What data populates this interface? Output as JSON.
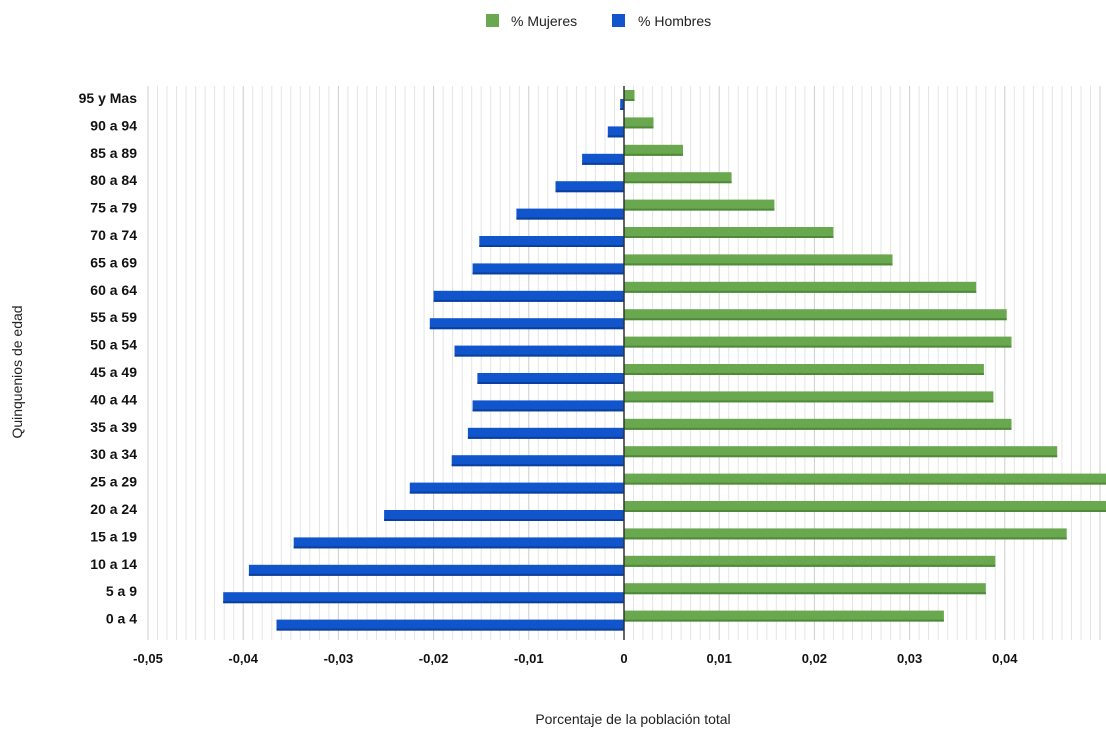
{
  "chart_data": {
    "type": "bar",
    "orientation": "horizontal",
    "title": "",
    "xlabel": "Porcentaje de la población total",
    "ylabel": "Quinquenios de edad",
    "categories": [
      "95 y Mas",
      "90 a 94",
      "85 a 89",
      "80 a 84",
      "75 a 79",
      "70 a 74",
      "65 a 69",
      "60 a 64",
      "55 a 59",
      "50 a 54",
      "45 a 49",
      "40 a 44",
      "35 a 39",
      "30 a 34",
      "25 a 29",
      "20 a 24",
      "15 a 19",
      "10 a 14",
      "5 a 9",
      "0 a 4"
    ],
    "series": [
      {
        "name": "% Mujeres",
        "color": "#6aa84f",
        "values": [
          0.0011,
          0.0031,
          0.0062,
          0.0113,
          0.0158,
          0.022,
          0.0282,
          0.037,
          0.0402,
          0.0407,
          0.0378,
          0.0388,
          0.0407,
          0.0455,
          0.0509,
          0.0507,
          0.0465,
          0.039,
          0.038,
          0.0336
        ]
      },
      {
        "name": "% Hombres",
        "color": "#1155cc",
        "values": [
          -0.0004,
          -0.0017,
          -0.0044,
          -0.0072,
          -0.0113,
          -0.0152,
          -0.0159,
          -0.02,
          -0.0204,
          -0.0178,
          -0.0154,
          -0.0159,
          -0.0164,
          -0.0181,
          -0.0225,
          -0.0252,
          -0.0347,
          -0.0394,
          -0.0421,
          -0.0365
        ]
      }
    ],
    "xlim": [
      -0.05,
      0.05
    ],
    "xticks": [
      -0.05,
      -0.04,
      -0.03,
      -0.02,
      -0.01,
      0,
      0.01,
      0.02,
      0.03,
      0.04
    ],
    "xtick_labels": [
      "-0,05",
      "-0,04",
      "-0,03",
      "-0,02",
      "-0,01",
      "0",
      "0,01",
      "0,02",
      "0,03",
      "0,04"
    ],
    "grid": true,
    "legend_position": "top"
  }
}
